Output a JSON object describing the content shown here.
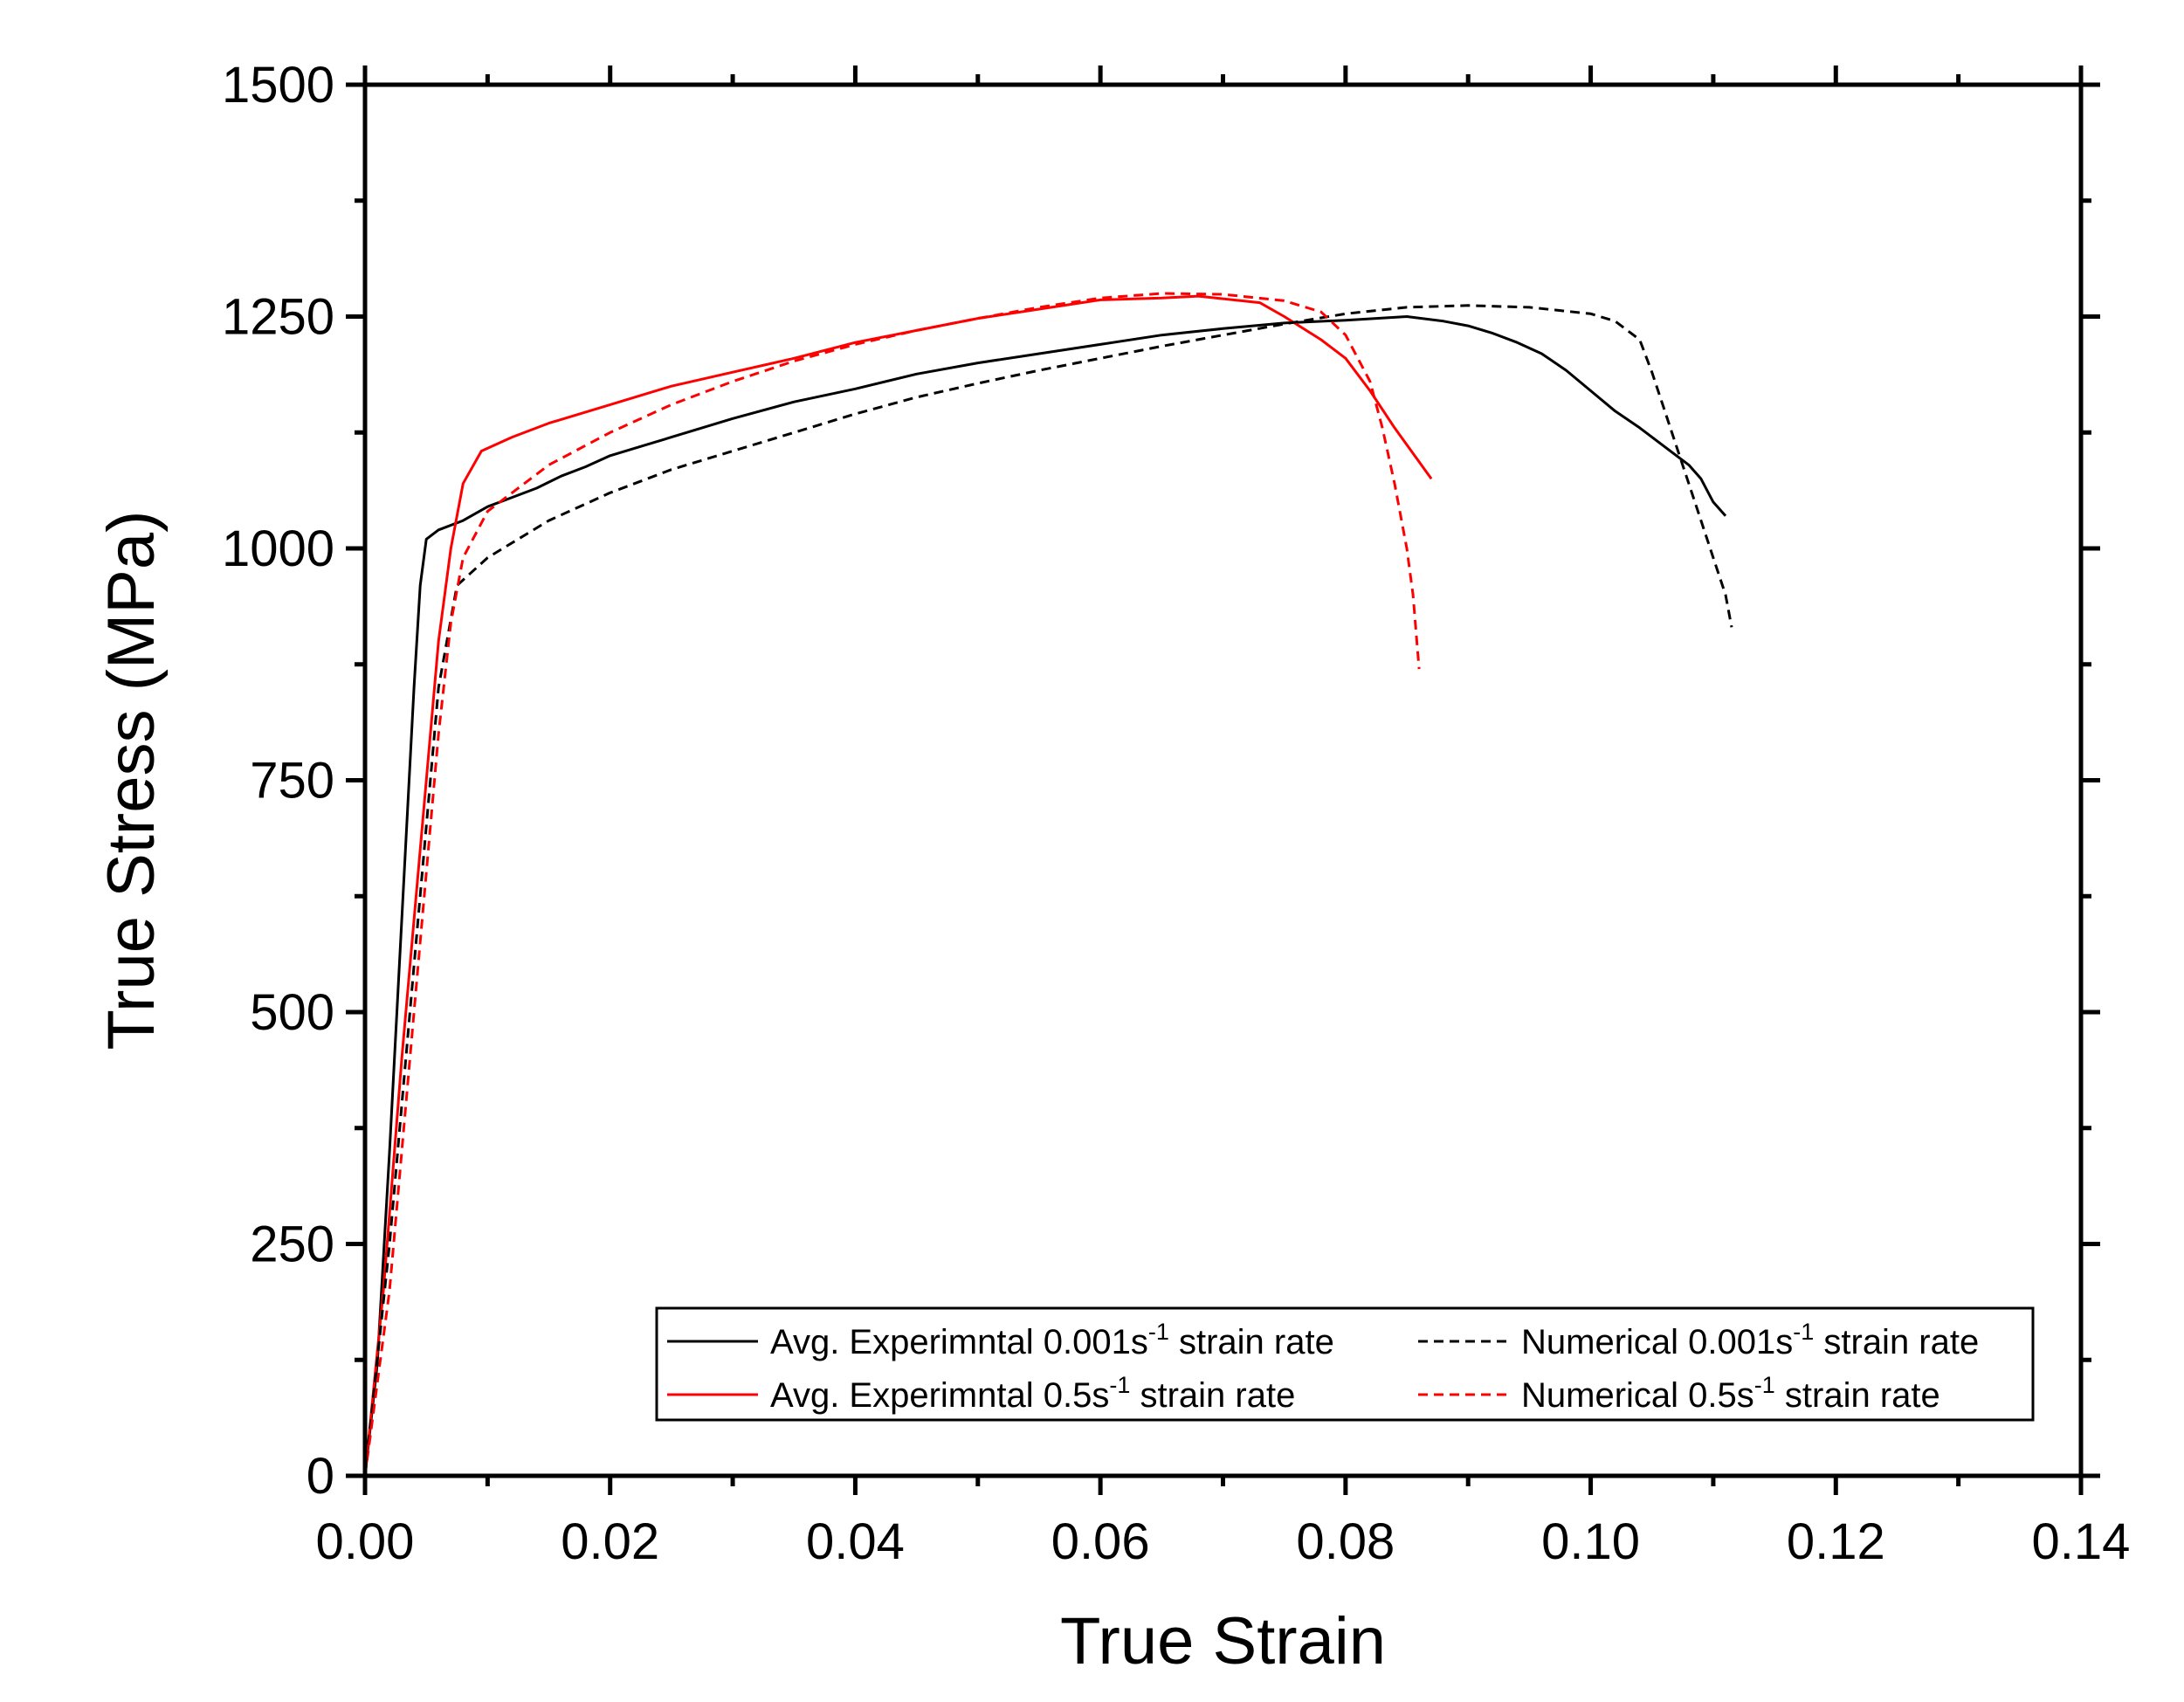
{
  "chart_data": {
    "type": "line",
    "title": "",
    "xlabel": "True Strain",
    "ylabel": "True Stress (MPa)",
    "xlim": [
      0,
      0.14
    ],
    "ylim": [
      0,
      1500
    ],
    "xticks": [
      0,
      0.02,
      0.04,
      0.06,
      0.08,
      0.1,
      0.12,
      0.14
    ],
    "xtick_labels": [
      "0.00",
      "0.02",
      "0.04",
      "0.06",
      "0.08",
      "0.10",
      "0.12",
      "0.14"
    ],
    "yticks": [
      0,
      250,
      500,
      750,
      1000,
      1250,
      1500
    ],
    "ytick_labels": [
      "0",
      "250",
      "500",
      "750",
      "1000",
      "1250",
      "1500"
    ],
    "grid": false,
    "legend_position": "bottom-right",
    "series": [
      {
        "name": "Avg. Experimntal 0.001s-1 strain rate",
        "legend": {
          "pre": "Avg. Experimntal 0.001s",
          "sup": "-1",
          "post": " strain rate"
        },
        "color": "#000000",
        "dash": "solid",
        "points": [
          [
            0,
            0
          ],
          [
            0.001,
            120
          ],
          [
            0.002,
            350
          ],
          [
            0.003,
            600
          ],
          [
            0.004,
            850
          ],
          [
            0.0045,
            960
          ],
          [
            0.005,
            1010
          ],
          [
            0.006,
            1020
          ],
          [
            0.008,
            1030
          ],
          [
            0.01,
            1045
          ],
          [
            0.012,
            1055
          ],
          [
            0.014,
            1065
          ],
          [
            0.016,
            1078
          ],
          [
            0.018,
            1088
          ],
          [
            0.02,
            1100
          ],
          [
            0.025,
            1120
          ],
          [
            0.03,
            1140
          ],
          [
            0.035,
            1158
          ],
          [
            0.04,
            1172
          ],
          [
            0.045,
            1188
          ],
          [
            0.05,
            1200
          ],
          [
            0.055,
            1210
          ],
          [
            0.06,
            1220
          ],
          [
            0.065,
            1230
          ],
          [
            0.07,
            1237
          ],
          [
            0.075,
            1243
          ],
          [
            0.08,
            1246
          ],
          [
            0.085,
            1250
          ],
          [
            0.088,
            1245
          ],
          [
            0.09,
            1240
          ],
          [
            0.092,
            1232
          ],
          [
            0.094,
            1222
          ],
          [
            0.096,
            1210
          ],
          [
            0.098,
            1192
          ],
          [
            0.1,
            1170
          ],
          [
            0.102,
            1148
          ],
          [
            0.104,
            1130
          ],
          [
            0.106,
            1110
          ],
          [
            0.108,
            1090
          ],
          [
            0.109,
            1075
          ],
          [
            0.11,
            1050
          ],
          [
            0.111,
            1035
          ]
        ]
      },
      {
        "name": "Avg. Experimntal 0.5s-1 strain rate",
        "legend": {
          "pre": "Avg. Experimntal 0.5s",
          "sup": "-1",
          "post": " strain rate"
        },
        "color": "#ff0000",
        "dash": "solid",
        "points": [
          [
            0,
            0
          ],
          [
            0.0015,
            200
          ],
          [
            0.003,
            450
          ],
          [
            0.005,
            750
          ],
          [
            0.006,
            900
          ],
          [
            0.007,
            1000
          ],
          [
            0.008,
            1070
          ],
          [
            0.0095,
            1105
          ],
          [
            0.012,
            1120
          ],
          [
            0.015,
            1135
          ],
          [
            0.02,
            1155
          ],
          [
            0.025,
            1175
          ],
          [
            0.03,
            1190
          ],
          [
            0.035,
            1205
          ],
          [
            0.04,
            1222
          ],
          [
            0.045,
            1235
          ],
          [
            0.05,
            1248
          ],
          [
            0.055,
            1258
          ],
          [
            0.06,
            1268
          ],
          [
            0.065,
            1270
          ],
          [
            0.068,
            1272
          ],
          [
            0.073,
            1265
          ],
          [
            0.075,
            1250
          ],
          [
            0.078,
            1225
          ],
          [
            0.08,
            1205
          ],
          [
            0.082,
            1170
          ],
          [
            0.084,
            1130
          ],
          [
            0.087,
            1075
          ]
        ]
      },
      {
        "name": "Numerical 0.001s-1 strain rate",
        "legend": {
          "pre": "Numerical 0.001s",
          "sup": "-1",
          "post": " strain rate"
        },
        "color": "#000000",
        "dash": "dashed",
        "points": [
          [
            0,
            0
          ],
          [
            0.002,
            250
          ],
          [
            0.004,
            550
          ],
          [
            0.006,
            850
          ],
          [
            0.0075,
            960
          ],
          [
            0.01,
            990
          ],
          [
            0.015,
            1030
          ],
          [
            0.02,
            1060
          ],
          [
            0.025,
            1085
          ],
          [
            0.03,
            1105
          ],
          [
            0.035,
            1125
          ],
          [
            0.04,
            1145
          ],
          [
            0.045,
            1163
          ],
          [
            0.05,
            1178
          ],
          [
            0.055,
            1192
          ],
          [
            0.06,
            1205
          ],
          [
            0.065,
            1218
          ],
          [
            0.07,
            1230
          ],
          [
            0.075,
            1242
          ],
          [
            0.08,
            1253
          ],
          [
            0.085,
            1260
          ],
          [
            0.09,
            1262
          ],
          [
            0.095,
            1260
          ],
          [
            0.1,
            1253
          ],
          [
            0.102,
            1245
          ],
          [
            0.104,
            1225
          ],
          [
            0.105,
            1190
          ],
          [
            0.106,
            1150
          ],
          [
            0.107,
            1110
          ],
          [
            0.108,
            1070
          ],
          [
            0.109,
            1030
          ],
          [
            0.11,
            990
          ],
          [
            0.111,
            950
          ],
          [
            0.1115,
            915
          ]
        ]
      },
      {
        "name": "Numerical 0.5s-1 strain rate",
        "legend": {
          "pre": "Numerical 0.5s",
          "sup": "-1",
          "post": " strain rate"
        },
        "color": "#ff0000",
        "dash": "dashed",
        "points": [
          [
            0,
            0
          ],
          [
            0.002,
            200
          ],
          [
            0.004,
            500
          ],
          [
            0.006,
            800
          ],
          [
            0.007,
            920
          ],
          [
            0.008,
            990
          ],
          [
            0.01,
            1040
          ],
          [
            0.015,
            1090
          ],
          [
            0.02,
            1125
          ],
          [
            0.025,
            1155
          ],
          [
            0.03,
            1180
          ],
          [
            0.035,
            1202
          ],
          [
            0.04,
            1220
          ],
          [
            0.045,
            1235
          ],
          [
            0.05,
            1248
          ],
          [
            0.055,
            1260
          ],
          [
            0.06,
            1270
          ],
          [
            0.065,
            1275
          ],
          [
            0.07,
            1274
          ],
          [
            0.075,
            1267
          ],
          [
            0.078,
            1255
          ],
          [
            0.08,
            1230
          ],
          [
            0.082,
            1180
          ],
          [
            0.083,
            1130
          ],
          [
            0.084,
            1070
          ],
          [
            0.085,
            1000
          ],
          [
            0.0855,
            950
          ],
          [
            0.086,
            870
          ]
        ]
      }
    ]
  }
}
